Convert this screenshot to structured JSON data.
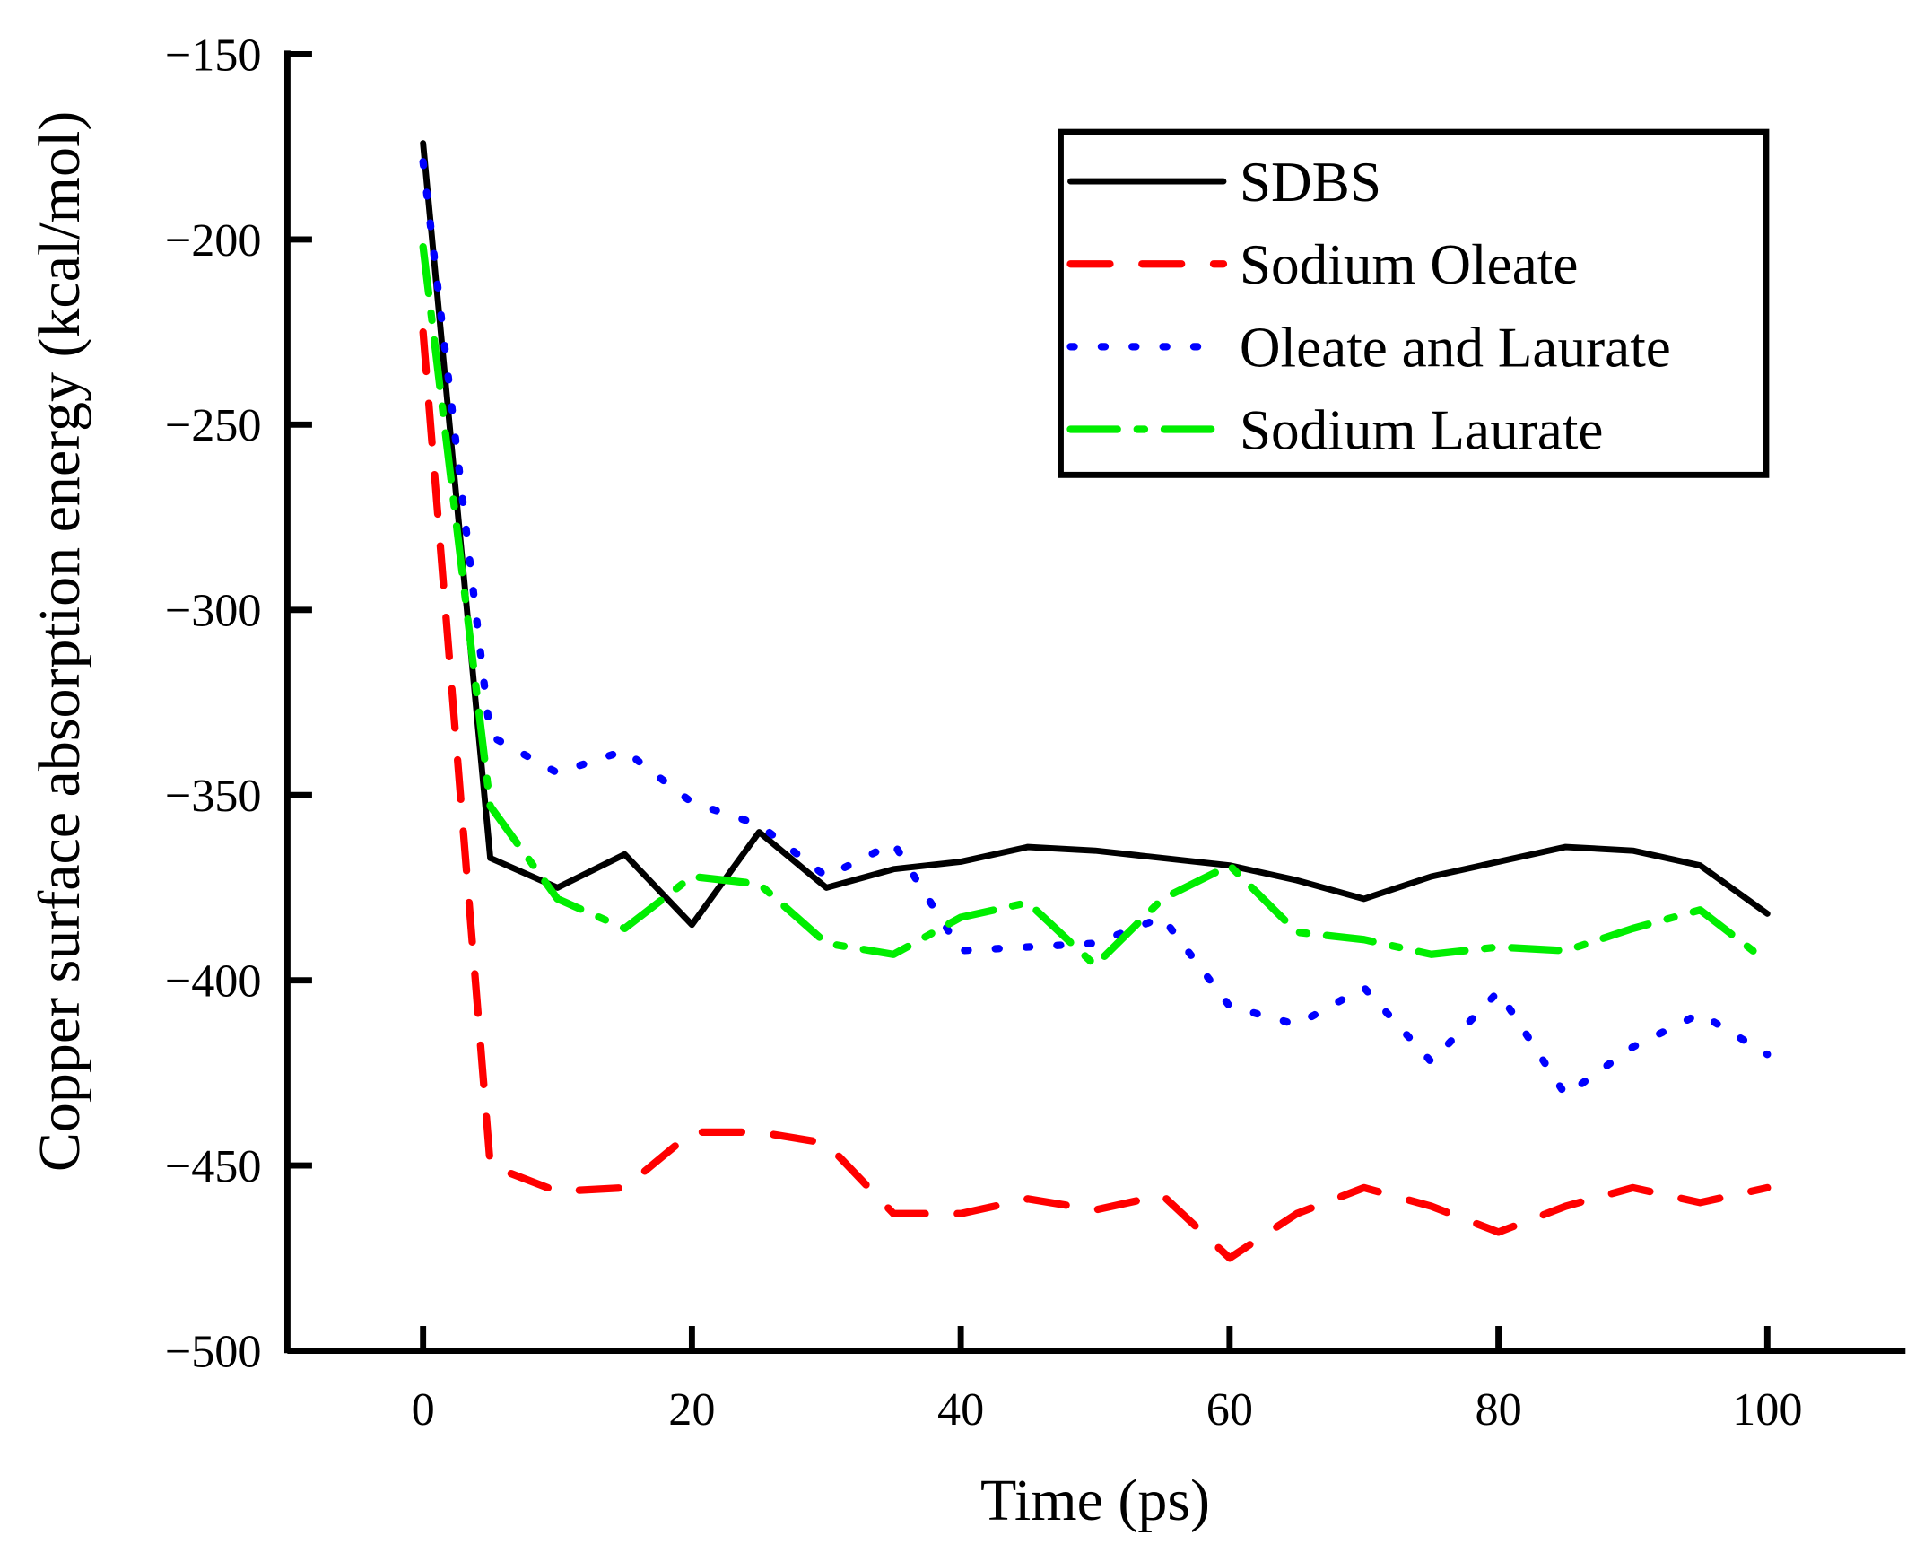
{
  "chart_data": {
    "type": "line",
    "title": "",
    "xlabel": "Time (ps)",
    "ylabel": "Copper surface absorption energy (kcal/mol)",
    "xlim": [
      -10,
      110
    ],
    "ylim": [
      -500,
      -150
    ],
    "xticks": [
      0,
      20,
      40,
      60,
      80,
      100
    ],
    "yticks": [
      -150,
      -200,
      -250,
      -300,
      -350,
      -400,
      -450,
      -500
    ],
    "xtick_labels": [
      "0",
      "20",
      "40",
      "60",
      "80",
      "100"
    ],
    "ytick_labels": [
      "−150",
      "−200",
      "−250",
      "−300",
      "−350",
      "−400",
      "−450",
      "−500"
    ],
    "grid": false,
    "legend_position": "top-right",
    "x": [
      0,
      5,
      10,
      15,
      20,
      25,
      30,
      35,
      40,
      45,
      50,
      55,
      60,
      65,
      70,
      75,
      80,
      85,
      90,
      95,
      100
    ],
    "series": [
      {
        "name": "SDBS",
        "color": "#000000",
        "style": "solid",
        "values": [
          -174,
          -367,
          -375,
          -366,
          -385,
          -360,
          -375,
          -370,
          -368,
          -364,
          -365,
          -367,
          -369,
          -373,
          -378,
          -372,
          -368,
          -364,
          -365,
          -369,
          -382
        ]
      },
      {
        "name": "Sodium Oleate",
        "color": "#ff0000",
        "style": "dash",
        "values": [
          -225,
          -450,
          -457,
          -456,
          -441,
          -441,
          -444,
          -463,
          -463,
          -459,
          -462,
          -458,
          -475,
          -463,
          -456,
          -461,
          -468,
          -461,
          -456,
          -460,
          -456
        ]
      },
      {
        "name": "Oleate and Laurate",
        "color": "#0000ff",
        "style": "dot",
        "values": [
          -179,
          -334,
          -344,
          -338,
          -352,
          -358,
          -372,
          -363,
          -392,
          -391,
          -390,
          -383,
          -407,
          -412,
          -402,
          -422,
          -403,
          -431,
          -418,
          -409,
          -420
        ]
      },
      {
        "name": "Sodium Laurate",
        "color": "#00ee00",
        "style": "dashdot",
        "values": [
          -202,
          -353,
          -378,
          -386,
          -372,
          -374,
          -390,
          -393,
          -383,
          -379,
          -396,
          -378,
          -369,
          -387,
          -389,
          -393,
          -391,
          -392,
          -386,
          -381,
          -395
        ]
      }
    ]
  }
}
